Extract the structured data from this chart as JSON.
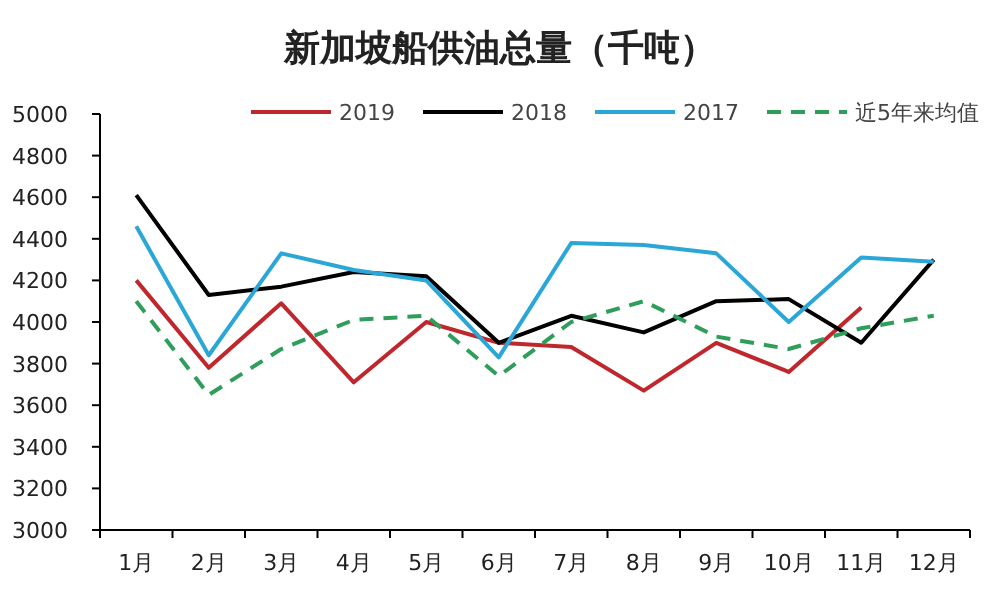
{
  "chart_data": {
    "type": "line",
    "title": "新加坡船供油总量（千吨）",
    "categories": [
      "1月",
      "2月",
      "3月",
      "4月",
      "5月",
      "6月",
      "7月",
      "8月",
      "9月",
      "10月",
      "11月",
      "12月"
    ],
    "series": [
      {
        "name": "2019",
        "color": "#c0272d",
        "values": [
          4200,
          3780,
          4090,
          3710,
          4000,
          3900,
          3880,
          3670,
          3900,
          3760,
          4070,
          null
        ]
      },
      {
        "name": "2018",
        "color": "#000000",
        "values": [
          4610,
          4130,
          4170,
          4240,
          4220,
          3900,
          4030,
          3950,
          4100,
          4110,
          3900,
          4300
        ]
      },
      {
        "name": "2017",
        "color": "#2aa7d6",
        "values": [
          4460,
          3840,
          4330,
          4250,
          4200,
          3830,
          4380,
          4370,
          4330,
          4000,
          4310,
          4290
        ]
      },
      {
        "name": "近5年来均值",
        "color": "#2e9e5a",
        "line_style": "dashed",
        "values": [
          4100,
          3650,
          3870,
          4010,
          4030,
          3740,
          4000,
          4100,
          3930,
          3870,
          3970,
          4030
        ]
      }
    ],
    "ylim": [
      3000,
      5000
    ],
    "yticks": [
      3000,
      3200,
      3400,
      3600,
      3800,
      4000,
      4200,
      4400,
      4600,
      4800,
      5000
    ],
    "grid": false,
    "legend": "top",
    "marker": "none",
    "line_style": "solid"
  }
}
